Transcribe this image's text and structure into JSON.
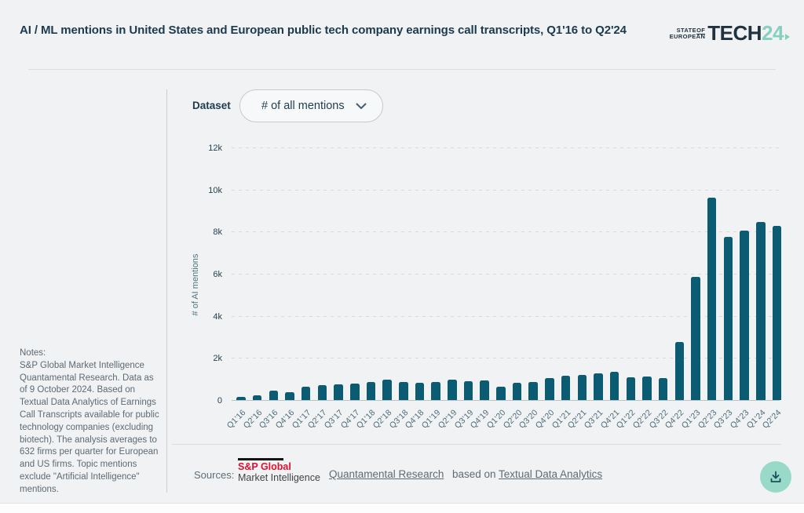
{
  "header": {
    "title": "AI / ML mentions in United States and European public tech company earnings call transcripts, Q1'16 to Q2'24",
    "logo": {
      "line1": "STATE",
      "line1b": "OF",
      "line2": "EUROPEAN",
      "word": "TECH",
      "year": "24"
    }
  },
  "controls": {
    "dataset_label": "Dataset",
    "dataset_value": "# of all mentions",
    "chevron_icon": "chevron-down"
  },
  "notes": {
    "heading": "Notes:",
    "body": "S&P Global Market Intelligence Quantamental Research. Data as of 9 October 2024. Based on Textual Data Analytics of Earnings Call Transcripts available for public technology companies (excluding biotech). The analysis averages to 632 firms per quarter for European and US firms. Topic mentions exclude \"Artificial Intelligence\" mentions."
  },
  "sources": {
    "label": "Sources:",
    "sp_logo": {
      "line1": "S&P Global",
      "line2": "Market Intelligence"
    },
    "link1": "Quantamental Research",
    "middle": "based on",
    "link2": "Textual Data Analytics"
  },
  "colors": {
    "bar": "#0b5b72",
    "background": "#f1f2f4",
    "accent_mint": "#86d0bf",
    "download_button": "#98d9c8",
    "sp_red": "#e0112e",
    "title_text": "#1c3a4d"
  },
  "chart_data": {
    "type": "bar",
    "title": "AI / ML mentions in United States and European public tech company earnings call transcripts, Q1'16 to Q2'24",
    "xlabel": "",
    "ylabel": "# of AI mentions",
    "ylim": [
      0,
      12000
    ],
    "ytick_interval": 2000,
    "ytick_labels": [
      "0",
      "2k",
      "4k",
      "6k",
      "8k",
      "10k",
      "12k"
    ],
    "grid": "horizontal-dashed",
    "legend": "none",
    "bar_color": "#0b5b72",
    "categories": [
      "Q1'16",
      "Q2'16",
      "Q3'16",
      "Q4'16",
      "Q1'17",
      "Q2'17",
      "Q3'17",
      "Q4'17",
      "Q1'18",
      "Q2'18",
      "Q3'18",
      "Q4'18",
      "Q1'19",
      "Q2'19",
      "Q3'19",
      "Q4'19",
      "Q1'20",
      "Q2'20",
      "Q3'20",
      "Q4'20",
      "Q1'21",
      "Q2'21",
      "Q3'21",
      "Q4'21",
      "Q1'22",
      "Q2'22",
      "Q3'22",
      "Q4'22",
      "Q1'23",
      "Q2'23",
      "Q3'23",
      "Q4'23",
      "Q1'24",
      "Q2'24"
    ],
    "values": [
      140,
      230,
      430,
      370,
      620,
      720,
      750,
      800,
      860,
      975,
      870,
      830,
      870,
      960,
      890,
      950,
      650,
      820,
      850,
      1060,
      1140,
      1200,
      1270,
      1330,
      1090,
      1110,
      1030,
      2750,
      5850,
      9600,
      7750,
      8050,
      8450,
      8280
    ]
  }
}
